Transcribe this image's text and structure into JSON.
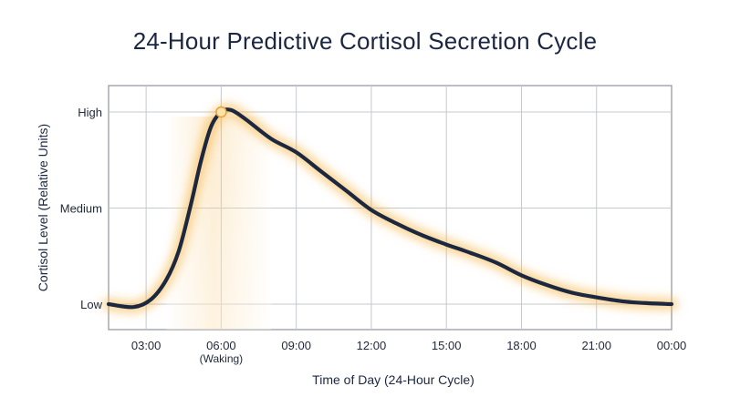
{
  "chart_data": {
    "type": "line",
    "title": "24-Hour Predictive Cortisol Secretion Cycle",
    "xlabel": "Time of Day (24-Hour Cycle)",
    "ylabel": "Cortisol Level (Relative Units)",
    "x_ticks": [
      "03:00",
      "06:00",
      "09:00",
      "12:00",
      "15:00",
      "18:00",
      "21:00",
      "00:00"
    ],
    "x_tick_notes": {
      "06:00": "(Waking)"
    },
    "y_ticks": [
      "Low",
      "Medium",
      "High"
    ],
    "xlim": [
      1.5,
      24
    ],
    "ylim": [
      0,
      2
    ],
    "grid": true,
    "series": [
      {
        "x": [
          1.5,
          2.5,
          3.2,
          3.8,
          4.3,
          4.8,
          5.2,
          5.6,
          6.0,
          6.4,
          7.0,
          8.0,
          9.0,
          10.0,
          11.0,
          12.0,
          13.0,
          14.0,
          15.0,
          16.0,
          17.0,
          18.0,
          19.0,
          20.0,
          21.0,
          22.0,
          23.0,
          24.0
        ],
        "y": [
          0.0,
          -0.03,
          0.05,
          0.25,
          0.55,
          1.05,
          1.5,
          1.85,
          2.0,
          2.02,
          1.92,
          1.72,
          1.58,
          1.38,
          1.18,
          0.98,
          0.84,
          0.72,
          0.62,
          0.53,
          0.43,
          0.3,
          0.2,
          0.12,
          0.07,
          0.03,
          0.01,
          0.0
        ]
      }
    ],
    "peak": {
      "x": 6.0,
      "y": 2.0
    },
    "colors": {
      "line": "#1c2740",
      "glow": "#f6b445",
      "marker_fill": "#fbe2a8",
      "marker_stroke": "#e8a035",
      "grid": "#c4c8cf",
      "frame": "#8e939c"
    }
  }
}
